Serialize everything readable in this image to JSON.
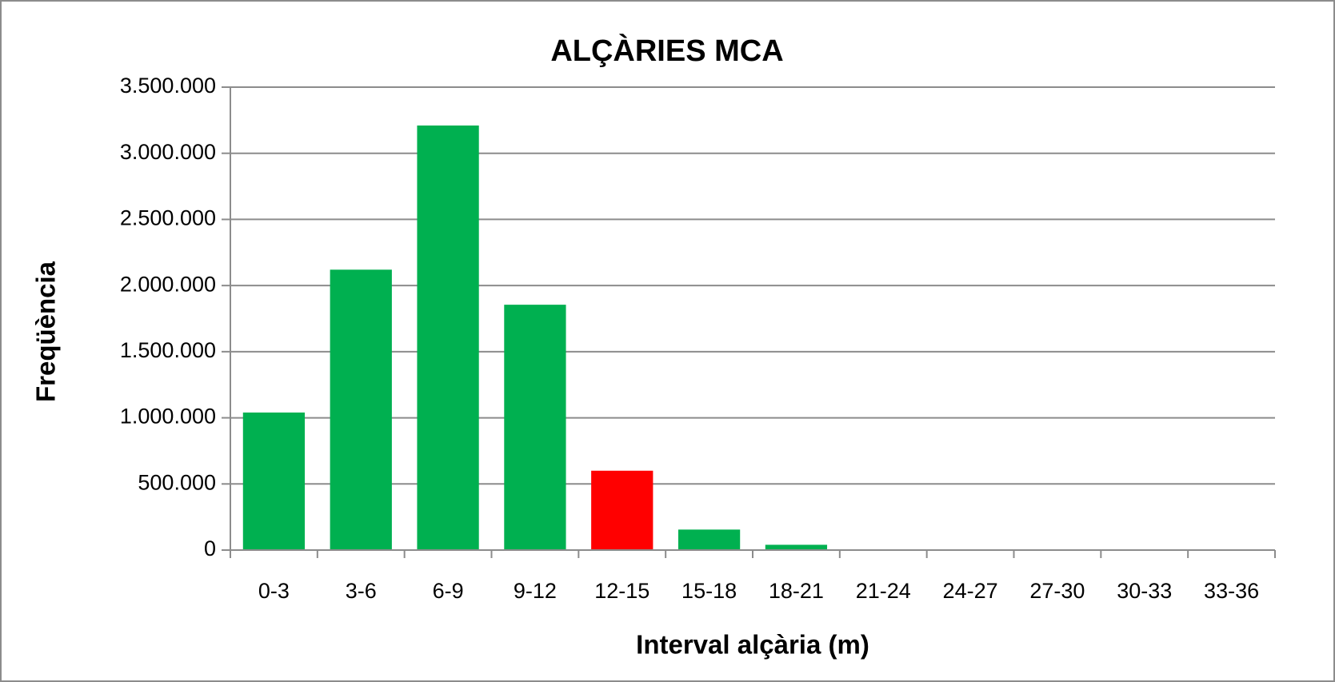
{
  "chart_data": {
    "type": "bar",
    "title": "ALÇÀRIES MCA",
    "x_label": "Interval alçària (m)",
    "y_label": "Freqüència",
    "categories": [
      "0-3",
      "3-6",
      "6-9",
      "9-12",
      "12-15",
      "15-18",
      "18-21",
      "21-24",
      "24-27",
      "27-30",
      "30-33",
      "33-36"
    ],
    "values": [
      1040000,
      2120000,
      3210000,
      1855000,
      600000,
      155000,
      40000,
      5000,
      1000,
      0,
      0,
      0
    ],
    "colors": [
      "#00b050",
      "#00b050",
      "#00b050",
      "#00b050",
      "#ff0000",
      "#00b050",
      "#00b050",
      "#00b050",
      "#00b050",
      "#00b050",
      "#00b050",
      "#00b050"
    ],
    "ylim": [
      0,
      3500000
    ],
    "yticks": [
      0,
      {
        "value": 500000,
        "label": "500.000"
      },
      {
        "value": 1000000,
        "label": "1.000.000"
      },
      {
        "value": 1500000,
        "label": "1.500.000"
      },
      {
        "value": 2000000,
        "label": "2.000.000"
      },
      {
        "value": 2500000,
        "label": "2.500.000"
      },
      {
        "value": 3000000,
        "label": "3.000.000"
      },
      {
        "value": 3500000,
        "label": "3.500.000"
      }
    ],
    "grid": true
  }
}
